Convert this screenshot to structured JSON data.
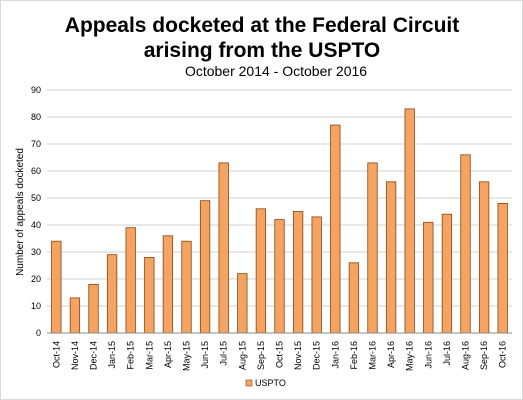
{
  "chart_data": {
    "type": "bar",
    "title_line1": "Appeals docketed at the Federal Circuit",
    "title_line2": "arising from the USPTO",
    "subtitle": "October 2014 - October 2016",
    "ylabel": "Number of appeals docketed",
    "xlabel": "",
    "ylim": [
      0,
      90
    ],
    "ytick_step": 10,
    "grid": true,
    "legend": "bottom-center",
    "series": [
      {
        "name": "USPTO",
        "color": "#f4a460",
        "stroke": "#8b4513"
      }
    ],
    "categories": [
      "Oct-14",
      "Nov-14",
      "Dec-14",
      "Jan-15",
      "Feb-15",
      "Mar-15",
      "Apr-15",
      "May-15",
      "Jun-15",
      "Jul-15",
      "Aug-15",
      "Sep-15",
      "Oct-15",
      "Nov-15",
      "Dec-15",
      "Jan-16",
      "Feb-16",
      "Mar-16",
      "Apr-16",
      "May-16",
      "Jun-16",
      "Jul-16",
      "Aug-16",
      "Sep-16",
      "Oct-16"
    ],
    "values": [
      34,
      13,
      18,
      29,
      39,
      28,
      36,
      34,
      49,
      63,
      22,
      46,
      42,
      45,
      43,
      77,
      26,
      63,
      56,
      83,
      41,
      44,
      66,
      56,
      48
    ]
  }
}
